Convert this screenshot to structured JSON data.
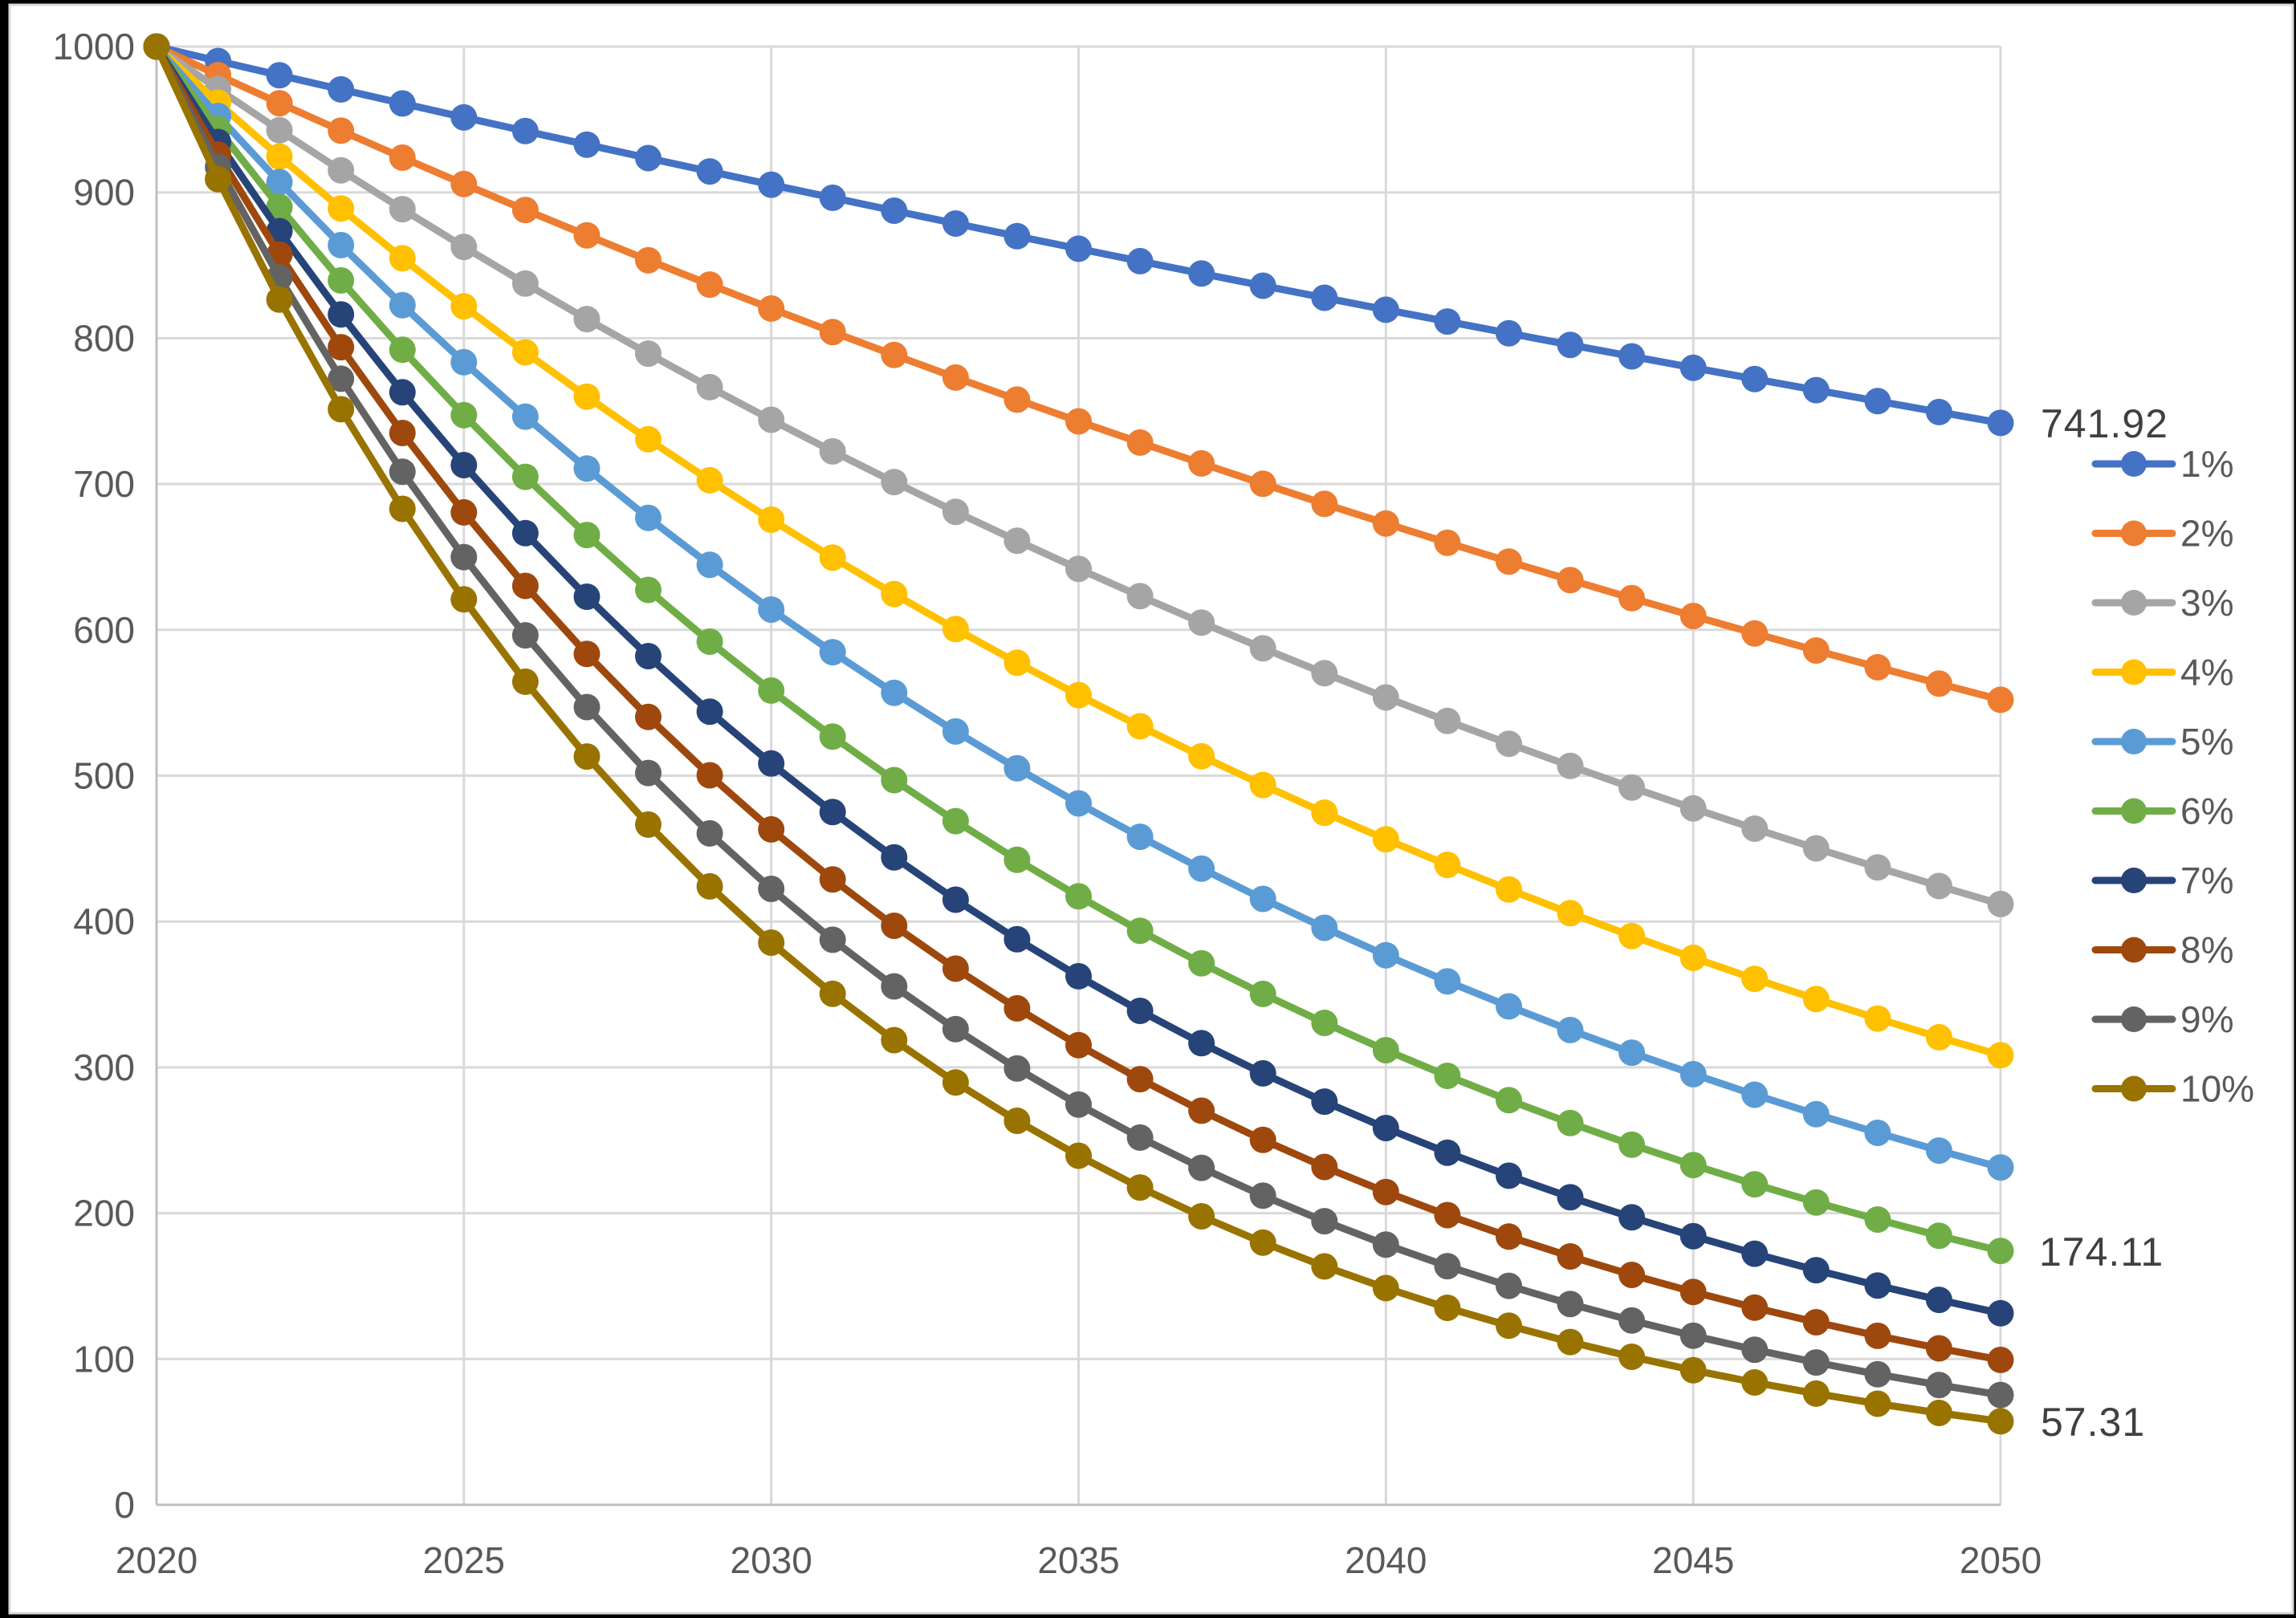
{
  "chart_data": {
    "type": "line",
    "title": "",
    "xlabel": "",
    "ylabel": "",
    "xlim": [
      2020,
      2050
    ],
    "ylim": [
      0,
      1000
    ],
    "grid": true,
    "legend_position": "right",
    "marker": "circle",
    "x": [
      2020,
      2021,
      2022,
      2023,
      2024,
      2025,
      2026,
      2027,
      2028,
      2029,
      2030,
      2031,
      2032,
      2033,
      2034,
      2035,
      2036,
      2037,
      2038,
      2039,
      2040,
      2041,
      2042,
      2043,
      2044,
      2045,
      2046,
      2047,
      2048,
      2049,
      2050
    ],
    "x_tick_labels": [
      "2020",
      "2025",
      "2030",
      "2035",
      "2040",
      "2045",
      "2050"
    ],
    "y_tick_labels": [
      "0",
      "100",
      "200",
      "300",
      "400",
      "500",
      "600",
      "700",
      "800",
      "900",
      "1000"
    ],
    "series": [
      {
        "name": "1%",
        "color": "#4472C4",
        "values": [
          1000.0,
          990.1,
          980.3,
          970.59,
          960.98,
          951.47,
          942.05,
          932.72,
          923.48,
          914.34,
          905.29,
          896.32,
          887.45,
          878.66,
          869.96,
          861.35,
          852.82,
          844.38,
          836.02,
          827.74,
          819.54,
          811.43,
          803.4,
          795.44,
          787.57,
          779.77,
          772.05,
          764.4,
          756.84,
          749.34,
          741.92
        ]
      },
      {
        "name": "2%",
        "color": "#ED7D31",
        "values": [
          1000.0,
          980.39,
          961.17,
          942.32,
          923.85,
          905.73,
          887.97,
          870.56,
          853.49,
          836.76,
          820.35,
          804.26,
          788.49,
          773.03,
          757.88,
          743.01,
          728.45,
          714.16,
          700.16,
          686.43,
          672.97,
          659.78,
          646.84,
          634.16,
          621.72,
          609.53,
          597.58,
          585.86,
          574.37,
          563.11,
          552.07
        ]
      },
      {
        "name": "3%",
        "color": "#A5A5A5",
        "values": [
          1000.0,
          970.87,
          942.6,
          915.14,
          888.49,
          862.61,
          837.48,
          813.09,
          789.41,
          766.42,
          744.09,
          722.42,
          701.38,
          680.95,
          661.12,
          641.86,
          623.17,
          605.02,
          587.39,
          570.29,
          553.68,
          537.55,
          521.89,
          506.69,
          491.93,
          477.61,
          463.69,
          450.19,
          437.08,
          424.35,
          411.99
        ]
      },
      {
        "name": "4%",
        "color": "#FFC000",
        "values": [
          1000.0,
          961.54,
          924.56,
          889.0,
          854.8,
          821.93,
          790.31,
          759.92,
          730.69,
          702.59,
          675.56,
          649.58,
          624.6,
          600.57,
          577.48,
          555.26,
          533.91,
          513.37,
          493.63,
          474.64,
          456.39,
          438.83,
          421.96,
          405.73,
          390.12,
          375.12,
          360.69,
          346.82,
          333.48,
          320.65,
          308.32
        ]
      },
      {
        "name": "5%",
        "color": "#5B9BD5",
        "values": [
          1000.0,
          952.38,
          907.03,
          863.84,
          822.7,
          783.53,
          746.22,
          710.68,
          676.84,
          644.61,
          613.91,
          584.68,
          556.84,
          530.32,
          505.07,
          481.02,
          458.11,
          436.3,
          415.52,
          395.73,
          376.89,
          358.94,
          341.85,
          325.57,
          310.07,
          295.3,
          281.24,
          267.85,
          255.09,
          242.95,
          231.38
        ]
      },
      {
        "name": "6%",
        "color": "#70AD47",
        "values": [
          1000.0,
          943.4,
          890.0,
          839.62,
          792.09,
          747.26,
          704.96,
          665.06,
          627.41,
          591.9,
          558.39,
          526.79,
          496.97,
          468.84,
          442.3,
          417.27,
          393.65,
          371.36,
          350.34,
          330.51,
          311.8,
          294.16,
          277.51,
          261.8,
          246.98,
          233.0,
          219.81,
          207.37,
          195.63,
          184.56,
          174.11
        ]
      },
      {
        "name": "7%",
        "color": "#264478",
        "values": [
          1000.0,
          934.58,
          873.44,
          816.3,
          762.9,
          712.99,
          666.34,
          622.75,
          582.01,
          543.93,
          508.35,
          475.09,
          444.01,
          414.96,
          387.82,
          362.45,
          338.73,
          316.57,
          295.86,
          276.51,
          258.42,
          241.51,
          225.71,
          210.95,
          197.15,
          184.25,
          172.2,
          160.93,
          150.4,
          140.56,
          131.37
        ]
      },
      {
        "name": "8%",
        "color": "#9E480E",
        "values": [
          1000.0,
          925.93,
          857.34,
          793.83,
          735.03,
          680.58,
          630.17,
          583.49,
          540.27,
          500.25,
          463.19,
          428.88,
          397.11,
          367.7,
          340.46,
          315.24,
          291.89,
          270.27,
          250.25,
          231.71,
          214.55,
          198.66,
          183.94,
          170.32,
          157.7,
          146.02,
          135.2,
          125.19,
          115.91,
          107.33,
          99.38
        ]
      },
      {
        "name": "9%",
        "color": "#636363",
        "values": [
          1000.0,
          917.43,
          841.68,
          772.18,
          708.43,
          649.93,
          596.27,
          547.03,
          501.87,
          460.43,
          422.41,
          387.53,
          355.53,
          326.18,
          299.25,
          274.54,
          251.87,
          231.07,
          211.99,
          194.49,
          178.43,
          163.7,
          150.18,
          137.78,
          126.4,
          115.97,
          106.39,
          97.61,
          89.55,
          82.15,
          75.37
        ]
      },
      {
        "name": "10%",
        "color": "#997300",
        "values": [
          1000.0,
          909.09,
          826.45,
          751.31,
          683.01,
          620.92,
          564.47,
          513.16,
          466.51,
          424.1,
          385.54,
          350.49,
          318.63,
          289.66,
          263.33,
          239.39,
          217.63,
          197.84,
          179.86,
          163.51,
          148.64,
          135.13,
          122.85,
          111.68,
          101.53,
          92.3,
          83.91,
          76.28,
          69.34,
          63.04,
          57.31
        ]
      }
    ],
    "end_labels": [
      {
        "text": "741.92",
        "series": "1%"
      },
      {
        "text": "174.11",
        "series": "6%"
      },
      {
        "text": "57.31",
        "series": "10%"
      }
    ],
    "colors": {
      "gridline": "#D9D9D9",
      "axis_line": "#BFBFBF",
      "tick_text": "#595959",
      "data_label_text": "#404040",
      "plot_background": "#FFFFFF",
      "outer_background": "#000000"
    }
  }
}
